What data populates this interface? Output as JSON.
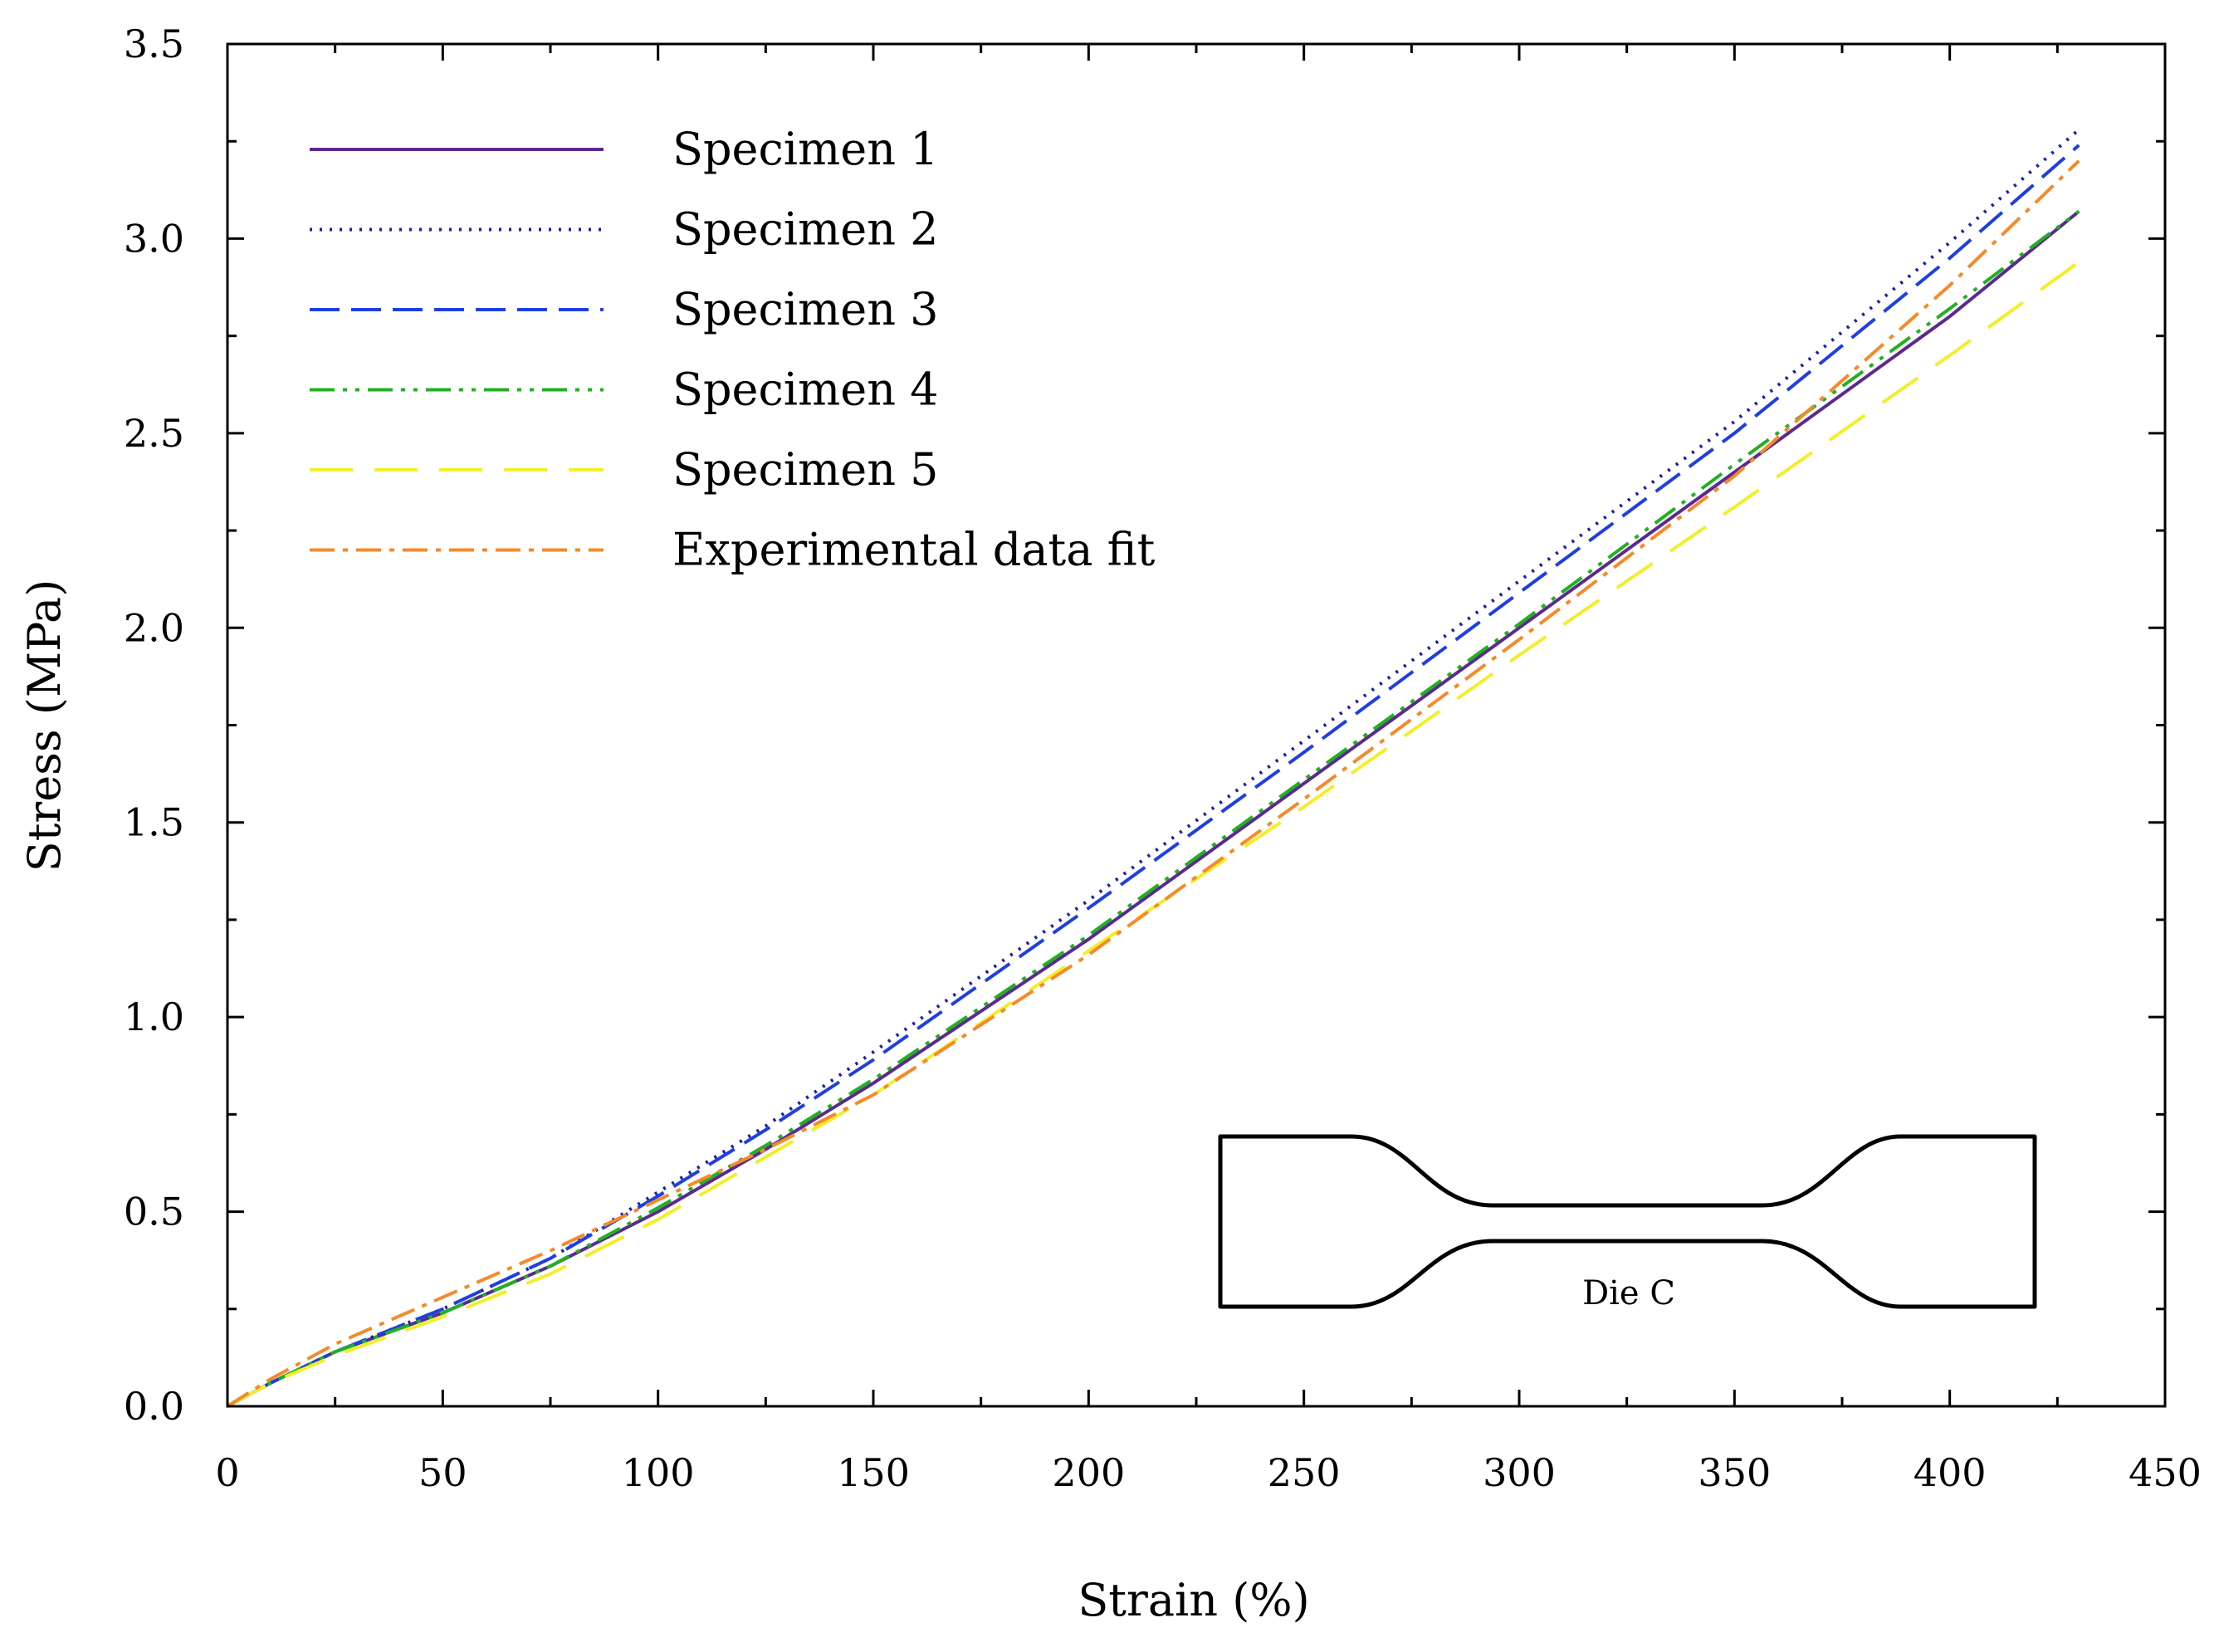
{
  "chart_data": {
    "type": "line",
    "title": "",
    "xlabel": "Strain (%)",
    "ylabel": "Stress (MPa)",
    "xlim": [
      0,
      450
    ],
    "ylim": [
      0,
      3.5
    ],
    "xticks": [
      0,
      50,
      100,
      150,
      200,
      250,
      300,
      350,
      400,
      450
    ],
    "xtick_labels": [
      "0",
      "50",
      "100",
      "150",
      "200",
      "250",
      "300",
      "350",
      "400",
      "450"
    ],
    "yticks": [
      0,
      0.5,
      1.0,
      1.5,
      2.0,
      2.5,
      3.0,
      3.5
    ],
    "ytick_labels": [
      "0.0",
      "0.5",
      "1.0",
      "1.5",
      "2.0",
      "2.5",
      "3.0",
      "3.5"
    ],
    "grid": false,
    "legend_position": "top-left",
    "annotation": "Die C",
    "series": [
      {
        "name": "Specimen 1",
        "color": "#5b2a8e",
        "dash": "solid",
        "x": [
          0,
          10,
          25,
          50,
          75,
          100,
          125,
          150,
          200,
          250,
          300,
          350,
          400,
          430
        ],
        "y": [
          0,
          0.06,
          0.14,
          0.24,
          0.36,
          0.5,
          0.66,
          0.83,
          1.2,
          1.6,
          2.0,
          2.4,
          2.8,
          3.07
        ]
      },
      {
        "name": "Specimen 2",
        "color": "#1f1fa8",
        "dash": "dotted",
        "x": [
          0,
          10,
          25,
          50,
          75,
          100,
          125,
          150,
          200,
          250,
          300,
          350,
          400,
          430
        ],
        "y": [
          0,
          0.06,
          0.14,
          0.25,
          0.38,
          0.55,
          0.72,
          0.91,
          1.3,
          1.71,
          2.12,
          2.53,
          2.99,
          3.28
        ]
      },
      {
        "name": "Specimen 3",
        "color": "#1f3fe0",
        "dash": "dashed",
        "x": [
          0,
          10,
          25,
          50,
          75,
          100,
          125,
          150,
          200,
          250,
          300,
          350,
          400,
          430
        ],
        "y": [
          0,
          0.06,
          0.14,
          0.25,
          0.38,
          0.54,
          0.71,
          0.89,
          1.28,
          1.68,
          2.09,
          2.5,
          2.95,
          3.24
        ]
      },
      {
        "name": "Specimen 4",
        "color": "#22b022",
        "dash": "dash-dot-dot",
        "x": [
          0,
          10,
          25,
          50,
          75,
          100,
          125,
          150,
          200,
          250,
          300,
          350,
          400,
          430
        ],
        "y": [
          0,
          0.06,
          0.14,
          0.24,
          0.36,
          0.51,
          0.67,
          0.84,
          1.21,
          1.61,
          2.01,
          2.42,
          2.82,
          3.07
        ]
      },
      {
        "name": "Specimen 5",
        "color": "#f2ef2a",
        "dash": "long-dash",
        "x": [
          0,
          10,
          25,
          50,
          75,
          100,
          125,
          150,
          200,
          250,
          300,
          350,
          400,
          430
        ],
        "y": [
          0,
          0.06,
          0.13,
          0.23,
          0.34,
          0.48,
          0.64,
          0.8,
          1.17,
          1.54,
          1.93,
          2.31,
          2.7,
          2.94
        ]
      },
      {
        "name": "Experimental data fit",
        "color": "#f58a2a",
        "dash": "dash-dot",
        "x": [
          0,
          10,
          25,
          50,
          75,
          100,
          125,
          150,
          200,
          250,
          300,
          350,
          400,
          430
        ],
        "y": [
          0,
          0.07,
          0.16,
          0.28,
          0.4,
          0.53,
          0.66,
          0.8,
          1.16,
          1.56,
          1.97,
          2.39,
          2.88,
          3.2
        ]
      }
    ]
  }
}
